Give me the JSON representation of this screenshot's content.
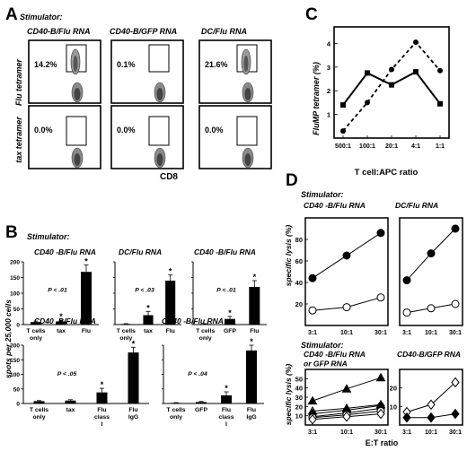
{
  "panel_letters": {
    "a": "A",
    "b": "B",
    "c": "C",
    "d": "D"
  },
  "panel_a": {
    "stimulator_label": "Stimulator:",
    "columns": [
      "CD40-B/Flu RNA",
      "CD40-B/GFP RNA",
      "DC/Flu RNA"
    ],
    "rows": [
      "Flu tetramer",
      "tax tetramer"
    ],
    "percentages": [
      [
        "14.2%",
        "0.1%",
        "21.6%"
      ],
      [
        "0.0%",
        "0.0%",
        "0.0%"
      ]
    ],
    "xaxis_label": "CD8"
  },
  "panel_b": {
    "stimulator_label": "Stimulator:",
    "ylabel": "spots per 25,000 cells"
  },
  "panel_c": {
    "ylabel": "FluMP tetramer  (%)",
    "xlabel": "T cell:APC ratio"
  },
  "panel_d": {
    "stimulator_top": "Stimulator:",
    "stimulator_bottom": "Stimulator:",
    "ylabel": "specific lysis (%)",
    "xlabel": "E:T ratio"
  },
  "chart_data": [
    {
      "id": "B1",
      "type": "bar",
      "title": "CD40 -B/Flu RNA",
      "categories": [
        "T cells only",
        "tax",
        "Flu"
      ],
      "values": [
        8,
        10,
        168
      ],
      "errors": [
        3,
        4,
        22
      ],
      "ylim": [
        0,
        200
      ],
      "yticks": [
        0,
        50,
        100,
        150,
        200
      ],
      "stars": [
        false,
        true,
        true
      ],
      "annotation": "P < .01"
    },
    {
      "id": "B2",
      "type": "bar",
      "title": "DC/Flu RNA",
      "categories": [
        "T cells only",
        "tax",
        "Flu"
      ],
      "values": [
        2,
        30,
        140
      ],
      "errors": [
        1,
        12,
        18
      ],
      "ylim": [
        0,
        200
      ],
      "stars": [
        false,
        true,
        true
      ],
      "annotation": "P < .03"
    },
    {
      "id": "B3",
      "type": "bar",
      "title": "CD40 -B/Flu RNA",
      "categories": [
        "T cells only",
        "GFP",
        "Flu"
      ],
      "values": [
        2,
        18,
        120
      ],
      "errors": [
        1,
        8,
        20
      ],
      "ylim": [
        0,
        200
      ],
      "stars": [
        false,
        true,
        true
      ],
      "annotation": "P < .01"
    },
    {
      "id": "B4",
      "type": "bar",
      "title": "CD40 -B/Flu RNA",
      "categories": [
        "T cells only",
        "tax",
        "Flu class I",
        "Flu IgG"
      ],
      "values": [
        8,
        10,
        38,
        175
      ],
      "errors": [
        2,
        3,
        14,
        18
      ],
      "ylim": [
        0,
        200
      ],
      "yticks": [
        0,
        50,
        100,
        150,
        200
      ],
      "stars": [
        false,
        false,
        true,
        true
      ],
      "annotation": "P < .05"
    },
    {
      "id": "B5",
      "type": "bar",
      "title": "CD40 -B/Flu RNA",
      "categories": [
        "T cells only",
        "GFP",
        "Flu class I",
        "Flu IgG"
      ],
      "values": [
        2,
        5,
        28,
        182
      ],
      "errors": [
        1,
        2,
        12,
        18
      ],
      "ylim": [
        0,
        200
      ],
      "stars": [
        false,
        false,
        true,
        true
      ],
      "annotation": "P < .04"
    },
    {
      "id": "C",
      "type": "line",
      "x": [
        "500:1",
        "100:1",
        "20:1",
        "4:1",
        "1:1"
      ],
      "ylim": [
        0,
        4.7
      ],
      "yticks": [
        1,
        2,
        3,
        4
      ],
      "series": [
        {
          "style": "solid",
          "marker": "square",
          "values": [
            1.4,
            2.75,
            2.25,
            2.8,
            1.45
          ]
        },
        {
          "style": "dashed",
          "marker": "circle",
          "values": [
            0.3,
            1.5,
            2.9,
            4.05,
            2.85
          ]
        }
      ]
    },
    {
      "id": "D1",
      "type": "line",
      "title": "CD40 -B/Flu RNA",
      "x": [
        "3:1",
        "10:1",
        "30:1"
      ],
      "ylim": [
        0,
        100
      ],
      "yticks": [
        20,
        40,
        60,
        80
      ],
      "series": [
        {
          "marker": "filled-circle",
          "values": [
            44,
            65,
            86
          ]
        },
        {
          "marker": "open-circle",
          "values": [
            14,
            17,
            26
          ]
        }
      ]
    },
    {
      "id": "D2",
      "type": "line",
      "title": "DC/Flu RNA",
      "x": [
        "3:1",
        "10:1",
        "30:1"
      ],
      "ylim": [
        0,
        100
      ],
      "series": [
        {
          "marker": "filled-circle",
          "values": [
            42,
            67,
            90
          ]
        },
        {
          "marker": "open-circle",
          "values": [
            12,
            16,
            20
          ]
        }
      ]
    },
    {
      "id": "D3",
      "type": "line",
      "title": "CD40 -B/Flu RNA\nor GFP RNA",
      "x": [
        "3:1",
        "10:1",
        "30:1"
      ],
      "ylim": [
        0,
        60
      ],
      "yticks": [
        10,
        20,
        30,
        40,
        50
      ],
      "series": [
        {
          "marker": "filled-triangle",
          "values": [
            26,
            39,
            51
          ]
        },
        {
          "marker": "open-triangle",
          "values": [
            15,
            18,
            22
          ]
        },
        {
          "marker": "filled-diamond",
          "values": [
            12,
            16,
            21
          ]
        },
        {
          "marker": "filled-circle",
          "values": [
            9,
            13,
            18
          ]
        },
        {
          "marker": "open-circle",
          "values": [
            8,
            11,
            15
          ]
        },
        {
          "marker": "open-diamond",
          "values": [
            6,
            9,
            12
          ]
        }
      ]
    },
    {
      "id": "D4",
      "type": "line",
      "title": "CD40-B/GFP RNA",
      "x": [
        "3:1",
        "10:1",
        "30:1"
      ],
      "ylim": [
        0,
        30
      ],
      "yticks": [
        10,
        20
      ],
      "series": [
        {
          "marker": "open-diamond",
          "values": [
            7,
            11,
            23
          ]
        },
        {
          "marker": "filled-diamond",
          "values": [
            4,
            4,
            6
          ]
        }
      ]
    }
  ]
}
